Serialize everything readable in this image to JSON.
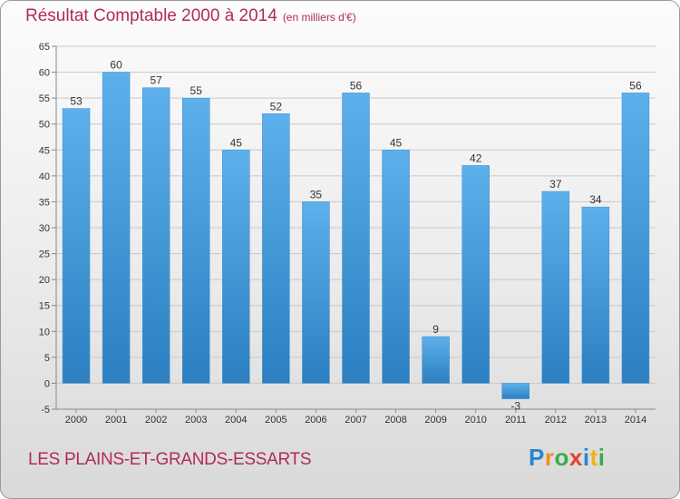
{
  "title": "Résultat Comptable 2000 à 2014",
  "subtitle": "(en milliers d'€)",
  "commune": "LES PLAINS-ET-GRANDS-ESSARTS",
  "logo": {
    "letters": [
      "P",
      "r",
      "o",
      "x",
      "i",
      "t",
      "i"
    ]
  },
  "colors": {
    "bar_top": "#5eb0ec",
    "bar_bottom": "#2c7fc0",
    "title": "#b22a5c"
  },
  "chart_data": {
    "type": "bar",
    "title": "Résultat Comptable 2000 à 2014",
    "subtitle": "(en milliers d'€)",
    "categories": [
      "2000",
      "2001",
      "2002",
      "2003",
      "2004",
      "2005",
      "2006",
      "2007",
      "2008",
      "2009",
      "2010",
      "2011",
      "2012",
      "2013",
      "2014"
    ],
    "values": [
      53,
      60,
      57,
      55,
      45,
      52,
      35,
      56,
      45,
      9,
      42,
      -3,
      37,
      34,
      56
    ],
    "ylim": [
      -5,
      65
    ],
    "yticks": [
      "-5",
      "0",
      "5",
      "10",
      "15",
      "20",
      "25",
      "30",
      "35",
      "40",
      "45",
      "50",
      "55",
      "60",
      "65"
    ],
    "grid": true,
    "legend": "none"
  }
}
